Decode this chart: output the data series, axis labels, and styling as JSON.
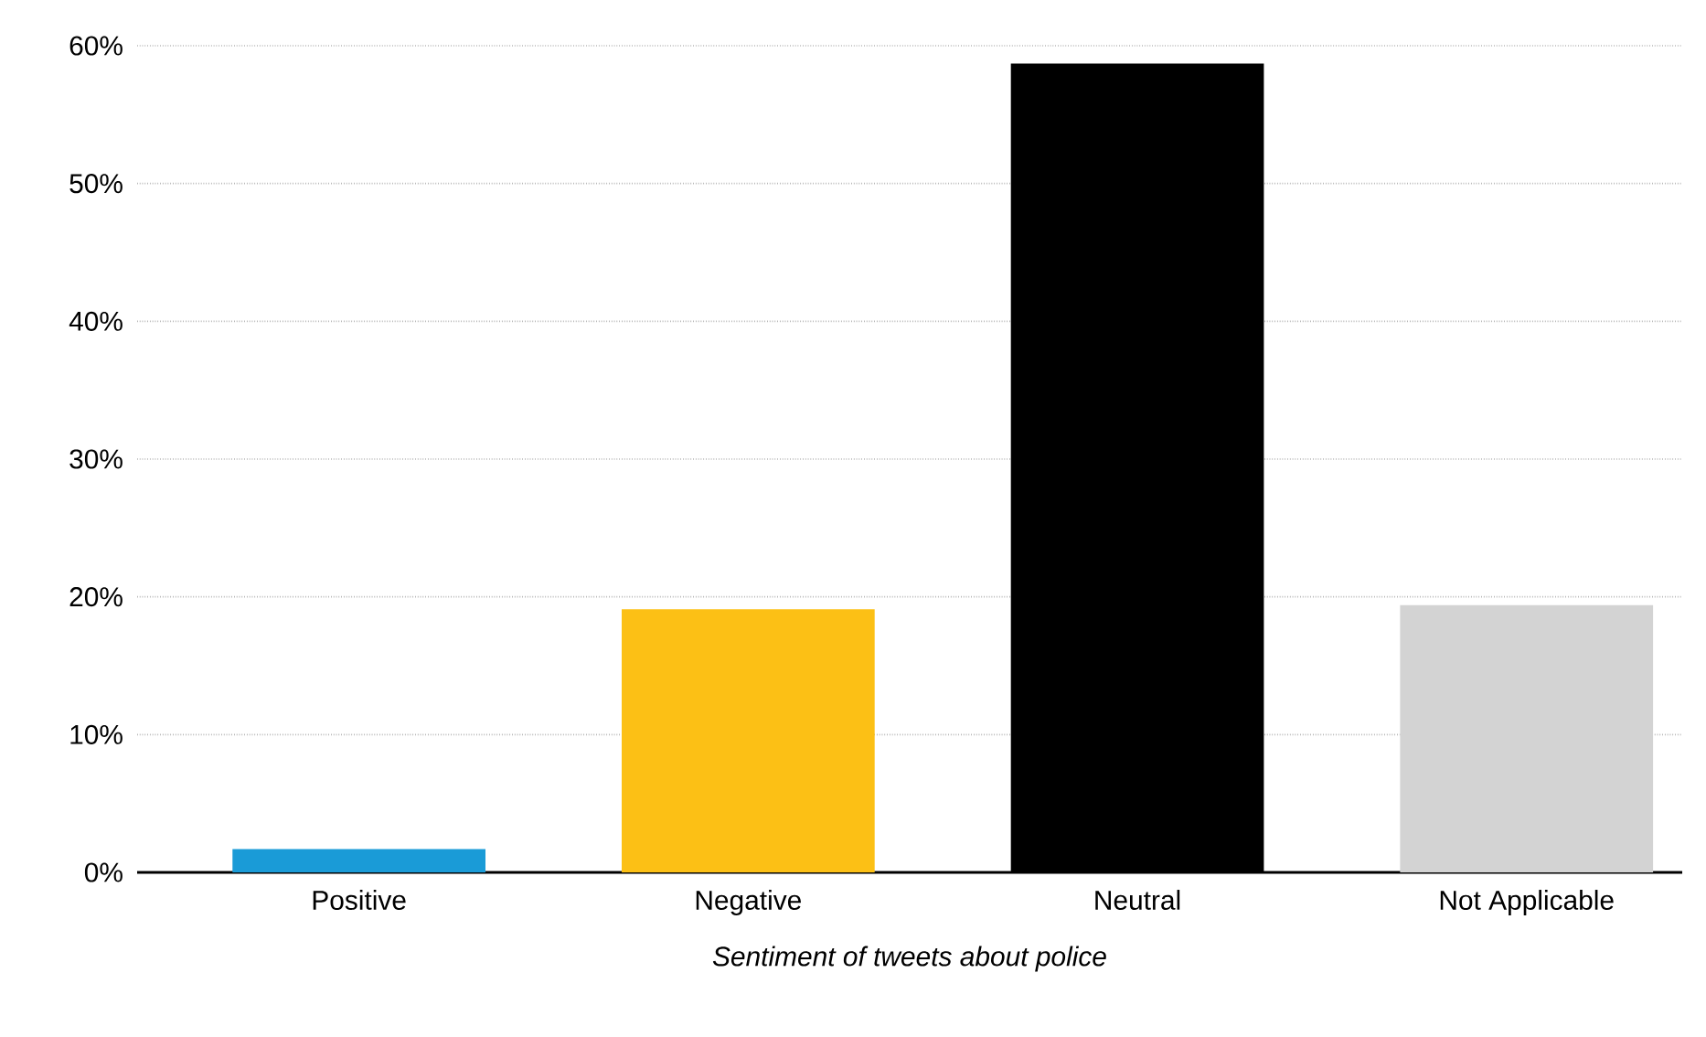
{
  "chart_data": {
    "type": "bar",
    "xlabel": "*Sentiment of tweets about police*",
    "categories": [
      "Positive",
      "Negative",
      "Neutral",
      "Not Applicable"
    ],
    "values": [
      1.7,
      19.1,
      58.7,
      19.4
    ],
    "colors": [
      "#1a9bd7",
      "#fcc015",
      "#000000",
      "#d3d3d3"
    ],
    "ylim": [
      0,
      60
    ],
    "yticks": [
      {
        "value": 0,
        "label": "0%"
      },
      {
        "value": 10,
        "label": "10%"
      },
      {
        "value": 20,
        "label": "20%"
      },
      {
        "value": 30,
        "label": "30%"
      },
      {
        "value": 40,
        "label": "40%"
      },
      {
        "value": 50,
        "label": "50%"
      },
      {
        "value": 60,
        "label": "60%"
      }
    ],
    "grid": "y"
  }
}
